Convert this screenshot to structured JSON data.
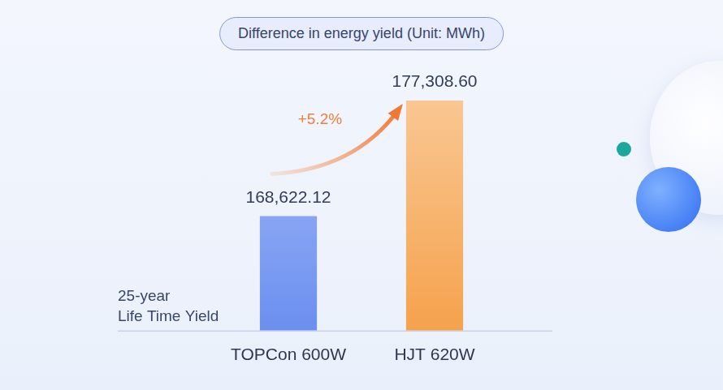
{
  "chart_data": {
    "type": "bar",
    "title": "Difference in energy yield (Unit: MWh)",
    "categories": [
      "TOPCon 600W",
      "HJT 620W"
    ],
    "values": [
      168622.12,
      177308.6
    ],
    "value_labels": [
      "168,622.12",
      "177,308.60"
    ],
    "colors": [
      "#6b8ff0",
      "#f5a24c"
    ],
    "ylim": [
      160000,
      180000
    ],
    "yticks": [
      160000,
      180000
    ],
    "grid": false,
    "data_labels": true,
    "tick_labels": "x",
    "change_label": "+5.2%",
    "y_label": [
      "25-year",
      "Life Time Yield"
    ]
  }
}
